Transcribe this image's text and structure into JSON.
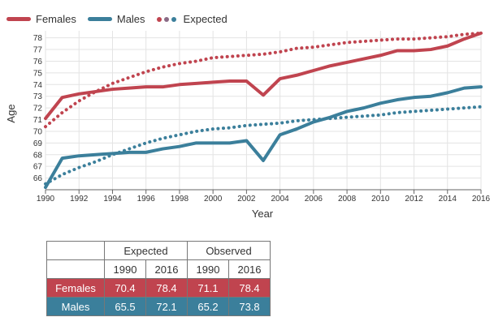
{
  "legend": {
    "females": "Females",
    "males": "Males",
    "expected": "Expected"
  },
  "colors": {
    "females": "#c0444f",
    "males": "#3b7f9b",
    "grid": "#e3e3e3",
    "axis": "#666666"
  },
  "chart_data": {
    "type": "line",
    "xlabel": "Year",
    "ylabel": "Age",
    "xlim": [
      1990,
      2016
    ],
    "ylim": [
      65,
      78
    ],
    "xticks": [
      1990,
      1992,
      1994,
      1996,
      1998,
      2000,
      2002,
      2004,
      2006,
      2008,
      2010,
      2012,
      2014,
      2016
    ],
    "yticks": [
      66,
      67,
      68,
      69,
      70,
      71,
      72,
      73,
      74,
      75,
      76,
      77,
      78
    ],
    "grid": true,
    "legend_position": "top-left",
    "x": [
      1990,
      1991,
      1992,
      1993,
      1994,
      1995,
      1996,
      1997,
      1998,
      1999,
      2000,
      2001,
      2002,
      2003,
      2004,
      2005,
      2006,
      2007,
      2008,
      2009,
      2010,
      2011,
      2012,
      2013,
      2014,
      2015,
      2016
    ],
    "series": [
      {
        "name": "Females",
        "style": "solid",
        "color_key": "females",
        "values": [
          71.1,
          72.9,
          73.2,
          73.4,
          73.6,
          73.7,
          73.8,
          73.8,
          74.0,
          74.1,
          74.2,
          74.3,
          74.3,
          73.1,
          74.5,
          74.8,
          75.2,
          75.6,
          75.9,
          76.2,
          76.5,
          76.9,
          76.9,
          77.0,
          77.3,
          77.9,
          78.4
        ]
      },
      {
        "name": "Males",
        "style": "solid",
        "color_key": "males",
        "values": [
          65.2,
          67.7,
          67.9,
          68.0,
          68.1,
          68.2,
          68.2,
          68.5,
          68.7,
          69.0,
          69.0,
          69.0,
          69.2,
          67.5,
          69.7,
          70.2,
          70.8,
          71.2,
          71.7,
          72.0,
          72.4,
          72.7,
          72.9,
          73.0,
          73.3,
          73.7,
          73.8
        ]
      },
      {
        "name": "Expected",
        "style": "dotted",
        "color_key": "females",
        "values": [
          70.4,
          71.6,
          72.6,
          73.4,
          74.1,
          74.6,
          75.1,
          75.5,
          75.8,
          76.0,
          76.3,
          76.4,
          76.5,
          76.6,
          76.8,
          77.1,
          77.2,
          77.4,
          77.6,
          77.7,
          77.8,
          77.9,
          77.9,
          78.0,
          78.1,
          78.3,
          78.4
        ]
      },
      {
        "name": "Expected",
        "style": "dotted",
        "color_key": "males",
        "values": [
          65.5,
          66.3,
          66.9,
          67.4,
          68.0,
          68.5,
          69.0,
          69.4,
          69.7,
          70.0,
          70.2,
          70.3,
          70.5,
          70.6,
          70.7,
          70.9,
          71.0,
          71.1,
          71.2,
          71.3,
          71.4,
          71.6,
          71.7,
          71.8,
          71.9,
          72.0,
          72.1
        ]
      }
    ]
  },
  "table": {
    "header_groups": [
      "Expected",
      "Observed"
    ],
    "header_years": [
      "1990",
      "2016",
      "1990",
      "2016"
    ],
    "rows": [
      {
        "label": "Females",
        "values": [
          "70.4",
          "78.4",
          "71.1",
          "78.4"
        ]
      },
      {
        "label": "Males",
        "values": [
          "65.5",
          "72.1",
          "65.2",
          "73.8"
        ]
      }
    ]
  }
}
